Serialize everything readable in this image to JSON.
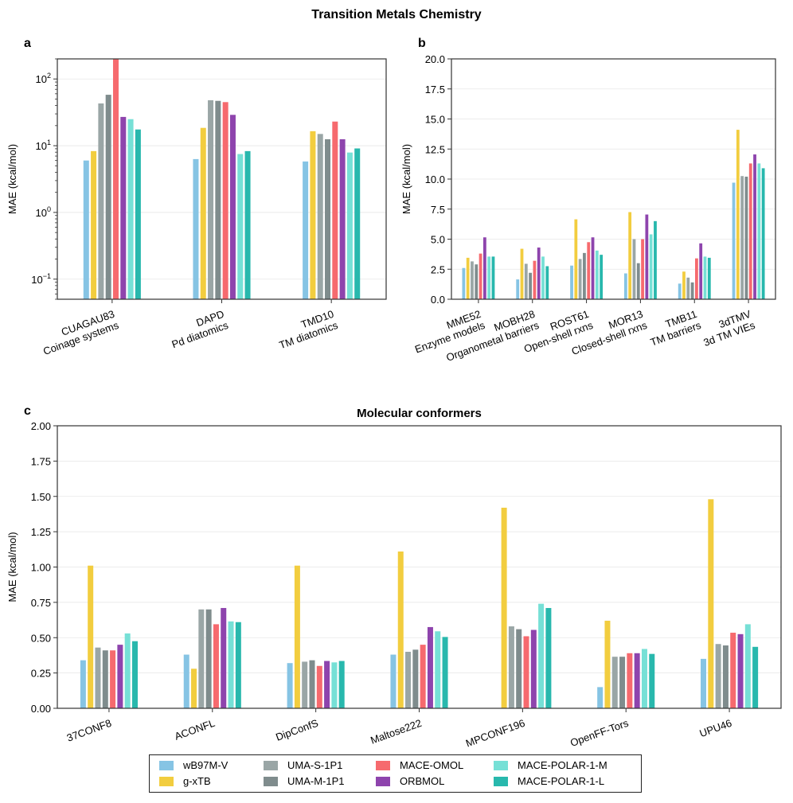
{
  "title": "Transition Metals Chemistry",
  "panel_letters": {
    "a": "a",
    "b": "b",
    "c": "c"
  },
  "methods": [
    {
      "name": "wB97M-V",
      "color": "#86c4e4"
    },
    {
      "name": "g-xTB",
      "color": "#f2cd3f"
    },
    {
      "name": "UMA-S-1P1",
      "color": "#9aa6a6"
    },
    {
      "name": "UMA-M-1P1",
      "color": "#7f8c8d"
    },
    {
      "name": "MACE-OMOL",
      "color": "#f66a6e"
    },
    {
      "name": "ORBMOL",
      "color": "#8e44ad"
    },
    {
      "name": "MACE-POLAR-1-M",
      "color": "#76e0d6"
    },
    {
      "name": "MACE-POLAR-1-L",
      "color": "#28b8ad"
    }
  ],
  "chart_data": [
    {
      "id": "a",
      "type": "bar",
      "yscale": "log",
      "ylabel": "MAE (kcal/mol)",
      "ylim": [
        0.05,
        200
      ],
      "yticks": [
        {
          "v": 0.1,
          "base": "10",
          "exp": "−1"
        },
        {
          "v": 1,
          "base": "10",
          "exp": "0"
        },
        {
          "v": 10,
          "base": "10",
          "exp": "1"
        },
        {
          "v": 100,
          "base": "10",
          "exp": "2"
        }
      ],
      "categories": [
        [
          "CUAGAU83",
          "Coinage systems"
        ],
        [
          "DAPD",
          "Pd diatomics"
        ],
        [
          "TMD10",
          "TM diatomics"
        ]
      ],
      "series": [
        {
          "name": "wB97M-V",
          "values": [
            6.0,
            6.3,
            5.8
          ]
        },
        {
          "name": "g-xTB",
          "values": [
            8.3,
            18.5,
            16.5
          ]
        },
        {
          "name": "UMA-S-1P1",
          "values": [
            43,
            48,
            15
          ]
        },
        {
          "name": "UMA-M-1P1",
          "values": [
            58,
            47,
            12.5
          ]
        },
        {
          "name": "MACE-OMOL",
          "values": [
            200,
            45,
            23
          ]
        },
        {
          "name": "ORBMOL",
          "values": [
            27,
            29,
            12.5
          ]
        },
        {
          "name": "MACE-POLAR-1-M",
          "values": [
            25,
            7.5,
            7.9
          ]
        },
        {
          "name": "MACE-POLAR-1-L",
          "values": [
            17.5,
            8.3,
            9.1
          ]
        }
      ]
    },
    {
      "id": "b",
      "type": "bar",
      "yscale": "linear",
      "ylabel": "MAE (kcal/mol)",
      "ylim": [
        0,
        20
      ],
      "yticks": [
        "0.0",
        "2.5",
        "5.0",
        "7.5",
        "10.0",
        "12.5",
        "15.0",
        "17.5",
        "20.0"
      ],
      "categories": [
        [
          "MME52",
          "Enzyme models"
        ],
        [
          "MOBH28",
          "Organometal barriers"
        ],
        [
          "ROST61",
          "Open-shell rxns"
        ],
        [
          "MOR13",
          "Closed-shell rxns"
        ],
        [
          "TMB11",
          "TM barriers"
        ],
        [
          "3dTMV",
          "3d TM VIEs"
        ]
      ],
      "series": [
        {
          "name": "wB97M-V",
          "values": [
            2.6,
            1.65,
            2.8,
            2.15,
            1.3,
            9.7
          ]
        },
        {
          "name": "g-xTB",
          "values": [
            3.45,
            4.2,
            6.65,
            7.25,
            2.3,
            14.1
          ]
        },
        {
          "name": "UMA-S-1P1",
          "values": [
            3.15,
            2.95,
            3.35,
            5.0,
            1.8,
            10.25
          ]
        },
        {
          "name": "UMA-M-1P1",
          "values": [
            2.9,
            2.2,
            3.85,
            3.0,
            1.4,
            10.2
          ]
        },
        {
          "name": "MACE-OMOL",
          "values": [
            3.8,
            3.2,
            4.75,
            5.0,
            3.4,
            11.3
          ]
        },
        {
          "name": "ORBMOL",
          "values": [
            5.15,
            4.3,
            5.15,
            7.05,
            4.65,
            12.05
          ]
        },
        {
          "name": "MACE-POLAR-1-M",
          "values": [
            3.55,
            3.55,
            4.05,
            5.4,
            3.55,
            11.3
          ]
        },
        {
          "name": "MACE-POLAR-1-L",
          "values": [
            3.55,
            2.75,
            3.7,
            6.5,
            3.45,
            10.9
          ]
        }
      ]
    },
    {
      "id": "c",
      "type": "bar",
      "yscale": "linear",
      "title": "Molecular conformers",
      "ylabel": "MAE (kcal/mol)",
      "ylim": [
        0,
        2
      ],
      "yticks": [
        "0.00",
        "0.25",
        "0.50",
        "0.75",
        "1.00",
        "1.25",
        "1.50",
        "1.75",
        "2.00"
      ],
      "categories": [
        [
          "37CONF8"
        ],
        [
          "ACONFL"
        ],
        [
          "DipConfS"
        ],
        [
          "Maltose222"
        ],
        [
          "MPCONF196"
        ],
        [
          "OpenFF-Tors"
        ],
        [
          "UPU46"
        ]
      ],
      "series": [
        {
          "name": "wB97M-V",
          "values": [
            0.34,
            0.38,
            0.32,
            0.38,
            null,
            0.15,
            0.35
          ]
        },
        {
          "name": "g-xTB",
          "values": [
            1.01,
            0.28,
            1.01,
            1.11,
            1.42,
            0.62,
            1.48
          ]
        },
        {
          "name": "UMA-S-1P1",
          "values": [
            0.43,
            0.7,
            0.33,
            0.4,
            0.58,
            0.365,
            0.455
          ]
        },
        {
          "name": "UMA-M-1P1",
          "values": [
            0.41,
            0.7,
            0.34,
            0.415,
            0.56,
            0.365,
            0.445
          ]
        },
        {
          "name": "MACE-OMOL",
          "values": [
            0.41,
            0.595,
            0.3,
            0.45,
            0.51,
            0.39,
            0.535
          ]
        },
        {
          "name": "ORBMOL",
          "values": [
            0.45,
            0.71,
            0.335,
            0.575,
            0.555,
            0.39,
            0.525
          ]
        },
        {
          "name": "MACE-POLAR-1-M",
          "values": [
            0.53,
            0.615,
            0.325,
            0.545,
            0.74,
            0.42,
            0.595
          ]
        },
        {
          "name": "MACE-POLAR-1-L",
          "values": [
            0.475,
            0.61,
            0.335,
            0.505,
            0.71,
            0.385,
            0.435
          ]
        }
      ]
    }
  ]
}
